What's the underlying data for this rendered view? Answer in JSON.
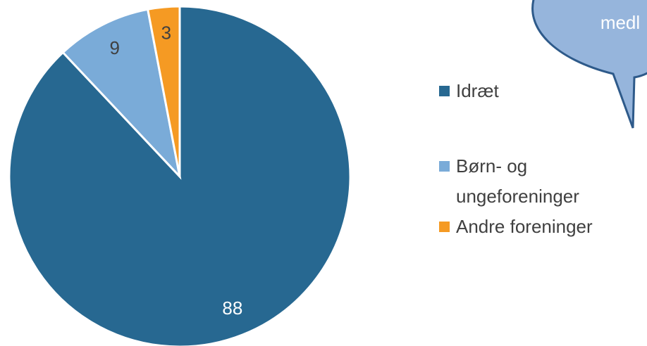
{
  "chart_data": {
    "type": "pie",
    "annotation": "medl",
    "categories": [
      "Idræt",
      "Børn- og ungeforeninger",
      "Andre foreninger"
    ],
    "values": [
      88,
      9,
      3
    ],
    "colors": [
      "#276891",
      "#7aabd8",
      "#f59a23"
    ],
    "label_colors": [
      "#ffffff",
      "#404040",
      "#404040"
    ]
  }
}
